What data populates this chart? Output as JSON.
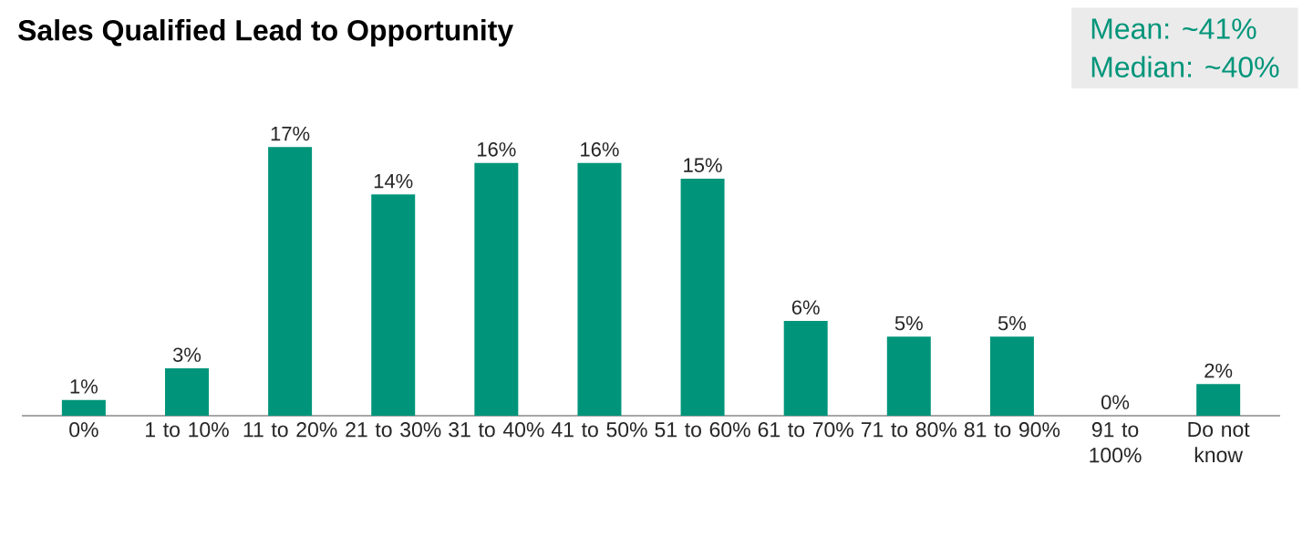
{
  "chart_data": {
    "type": "bar",
    "title": "Sales Qualified Lead to Opportunity",
    "categories": [
      "0%",
      "1 to 10%",
      "11 to 20%",
      "21 to 30%",
      "31 to 40%",
      "41 to 50%",
      "51 to 60%",
      "61 to 70%",
      "71 to 80%",
      "81 to 90%",
      "91 to 100%",
      "Do not know"
    ],
    "values": [
      1,
      3,
      17,
      14,
      16,
      16,
      15,
      6,
      5,
      5,
      0,
      2
    ],
    "value_labels": [
      "1%",
      "3%",
      "17%",
      "14%",
      "16%",
      "16%",
      "15%",
      "6%",
      "5%",
      "5%",
      "0%",
      "2%"
    ],
    "color": "#00957a",
    "annotations": [
      "Mean: ~41%",
      "Median: ~40%"
    ]
  }
}
